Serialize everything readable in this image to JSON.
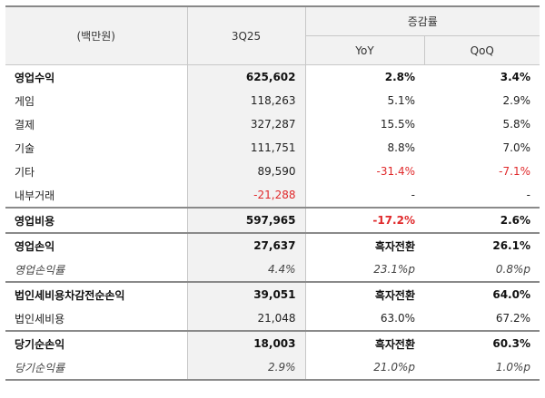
{
  "header": {
    "unit": "(백만원)",
    "period": "3Q25",
    "group": "증감률",
    "yoy": "YoY",
    "qoq": "QoQ"
  },
  "rows": [
    {
      "label": "영업수익",
      "value": "625,602",
      "yoy": "2.8%",
      "qoq": "3.4%"
    },
    {
      "label": "게임",
      "value": "118,263",
      "yoy": "5.1%",
      "qoq": "2.9%"
    },
    {
      "label": "결제",
      "value": "327,287",
      "yoy": "15.5%",
      "qoq": "5.8%"
    },
    {
      "label": "기술",
      "value": "111,751",
      "yoy": "8.8%",
      "qoq": "7.0%"
    },
    {
      "label": "기타",
      "value": "89,590",
      "yoy": "-31.4%",
      "qoq": "-7.1%"
    },
    {
      "label": "내부거래",
      "value": "-21,288",
      "yoy": "-",
      "qoq": "-"
    },
    {
      "label": "영업비용",
      "value": "597,965",
      "yoy": "-17.2%",
      "qoq": "2.6%"
    },
    {
      "label": "영업손익",
      "value": "27,637",
      "yoy": "흑자전환",
      "qoq": "26.1%"
    },
    {
      "label": "영업손익률",
      "value": "4.4%",
      "yoy": "23.1%p",
      "qoq": "0.8%p"
    },
    {
      "label": "법인세비용차감전순손익",
      "value": "39,051",
      "yoy": "흑자전환",
      "qoq": "64.0%"
    },
    {
      "label": "법인세비용",
      "value": "21,048",
      "yoy": "63.0%",
      "qoq": "67.2%"
    },
    {
      "label": "당기순손익",
      "value": "18,003",
      "yoy": "흑자전환",
      "qoq": "60.3%"
    },
    {
      "label": "당기순익률",
      "value": "2.9%",
      "yoy": "21.0%p",
      "qoq": "1.0%p"
    }
  ],
  "colors": {
    "negative": "#e0292b",
    "header_bg": "#f2f2f2"
  }
}
